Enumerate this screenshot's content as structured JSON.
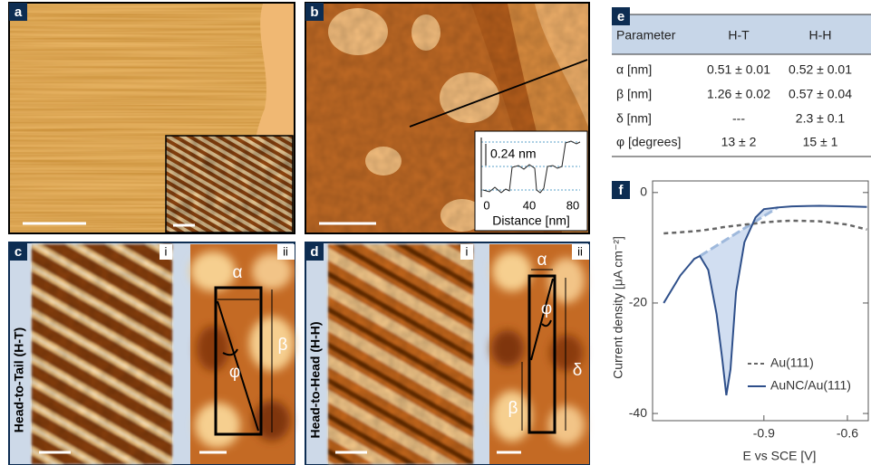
{
  "panel_labels": [
    "a",
    "b",
    "c",
    "d",
    "e",
    "f"
  ],
  "panel_b": {
    "profile_height": "0.24 nm",
    "xlabel": "Distance [nm]",
    "xticks": [
      "0",
      "40",
      "80"
    ]
  },
  "panel_c": {
    "side_label": "Head-to-Tail (H-T)",
    "sub_labels": [
      "i",
      "ii"
    ],
    "symbols": [
      "α",
      "β",
      "φ"
    ]
  },
  "panel_d": {
    "side_label": "Head-to-Head (H-H)",
    "sub_labels": [
      "i",
      "ii"
    ],
    "symbols": [
      "α",
      "φ",
      "δ",
      "β"
    ]
  },
  "table": {
    "header": [
      "Parameter",
      "H-T",
      "H-H"
    ],
    "rows": [
      [
        "α [nm]",
        "0.51 ± 0.01",
        "0.52 ± 0.01"
      ],
      [
        "β [nm]",
        "1.26 ± 0.02",
        "0.57 ± 0.04"
      ],
      [
        "δ [nm]",
        "---",
        "2.3 ± 0.1"
      ],
      [
        "φ [degrees]",
        "13 ± 2",
        "15 ± 1"
      ]
    ]
  },
  "chart_data": {
    "type": "line",
    "xlabel": "E vs SCE [V]",
    "ylabel": "Current density  [μA cm⁻²]",
    "x": [
      -1.26,
      -1.2,
      -1.15,
      -1.13,
      -1.1,
      -1.07,
      -1.05,
      -1.035,
      -1.02,
      -1.0,
      -0.97,
      -0.93,
      -0.9,
      -0.85,
      -0.8,
      -0.7,
      -0.6,
      -0.53
    ],
    "series": [
      {
        "name": "Au(111)",
        "color": "#666666",
        "dashed": true,
        "values": [
          -7.4,
          -7.2,
          -7.0,
          -6.9,
          -6.7,
          -6.5,
          -6.3,
          -6.2,
          -6.1,
          -6.0,
          -5.8,
          -5.6,
          -5.4,
          -5.2,
          -5.1,
          -5.2,
          -5.8,
          -6.7
        ]
      },
      {
        "name": "AuNC/Au(111)",
        "color": "#2e4f8a",
        "dashed": false,
        "values": [
          -20,
          -15,
          -12,
          -11.5,
          -14,
          -22,
          -30,
          -36.7,
          -32,
          -18,
          -9,
          -4.5,
          -3,
          -2.7,
          -2.5,
          -2.4,
          -2.5,
          -2.6
        ]
      }
    ],
    "xlim": [
      -1.3,
      -0.525
    ],
    "ylim": [
      -41.3,
      2.1
    ],
    "xticks": [
      -0.9,
      -0.6
    ],
    "yticks": [
      0,
      -20,
      -40
    ],
    "legend": "lower right",
    "grid": false
  }
}
